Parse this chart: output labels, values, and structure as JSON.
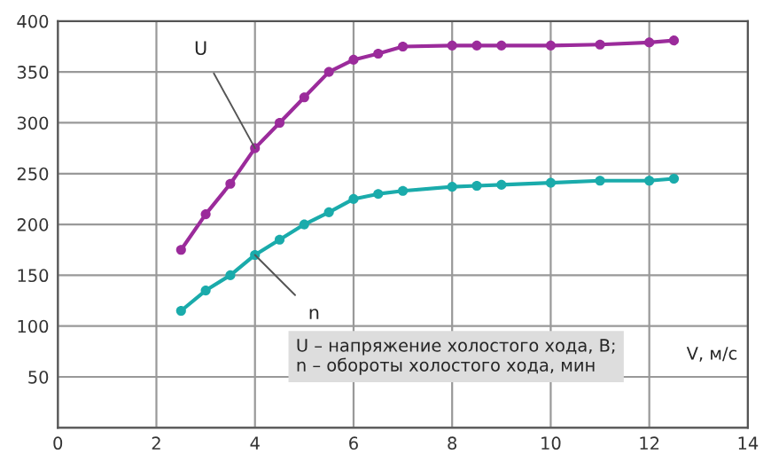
{
  "chart_data": {
    "type": "line",
    "xlabel": "V, м/с",
    "x": [
      2.5,
      3,
      3.5,
      4,
      4.5,
      5,
      5.5,
      6,
      6.5,
      7,
      8,
      8.5,
      9,
      10,
      11,
      12,
      12.5
    ],
    "series": [
      {
        "name": "U",
        "color": "#9b2b9b",
        "values": [
          175,
          210,
          240,
          275,
          300,
          325,
          350,
          362,
          368,
          375,
          376,
          376,
          376,
          376,
          377,
          379,
          381
        ]
      },
      {
        "name": "n",
        "color": "#1aabab",
        "values": [
          115,
          135,
          150,
          170,
          185,
          200,
          212,
          225,
          230,
          233,
          237,
          238,
          239,
          241,
          243,
          243,
          245
        ]
      }
    ],
    "xlim": [
      0,
      14
    ],
    "xticks": [
      0,
      2,
      4,
      6,
      8,
      10,
      12,
      14
    ],
    "ylim": [
      0,
      400
    ],
    "yticks": [
      {
        "value": 0,
        "label": null
      },
      50,
      100,
      150,
      200,
      250,
      300,
      350,
      400
    ],
    "grid": true,
    "marker": "circle",
    "line_style": "solid",
    "annotations": [
      "U – напряжение холостого хода, В;\nn – обороты холостого хода, мин"
    ]
  }
}
